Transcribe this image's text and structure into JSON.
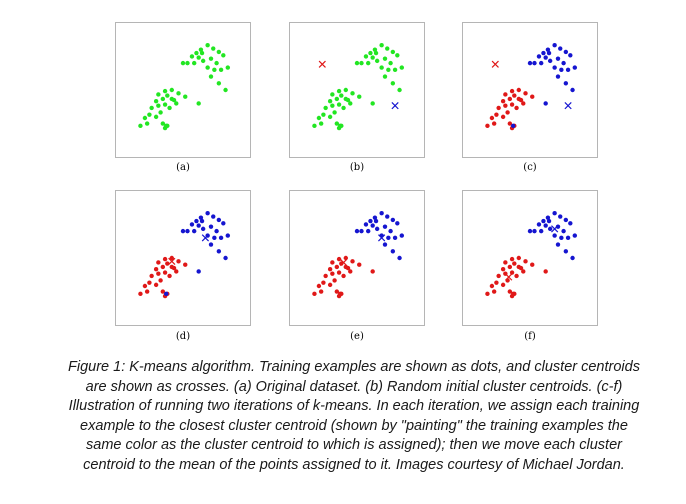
{
  "figure": {
    "caption": "Figure 1: K-means algorithm. Training examples are shown as dots, and cluster centroids are shown as crosses. (a) Original dataset. (b) Random initial cluster centroids. (c-f) Illustration of running two iterations of k-means. In each iteration, we assign each training example to the closest cluster centroid (shown by \"painting\" the training examples the same color as the cluster centroid to which is assigned); then we move each cluster centroid to the mean of the points assigned to it. Images courtesy of Michael Jordan."
  },
  "colors": {
    "green": "#22e622",
    "red": "#e01818",
    "blue": "#1515d0",
    "frame": "#b5b5b5"
  },
  "chart_data": {
    "type": "scatter",
    "xlim": [
      0,
      1
    ],
    "ylim": [
      0,
      1
    ],
    "points": {
      "cluster_a": [
        [
          0.58,
          0.8
        ],
        [
          0.62,
          0.83
        ],
        [
          0.66,
          0.86
        ],
        [
          0.72,
          0.9
        ],
        [
          0.77,
          0.87
        ],
        [
          0.82,
          0.84
        ],
        [
          0.86,
          0.81
        ],
        [
          0.6,
          0.74
        ],
        [
          0.68,
          0.76
        ],
        [
          0.75,
          0.78
        ],
        [
          0.8,
          0.74
        ],
        [
          0.72,
          0.7
        ],
        [
          0.78,
          0.68
        ],
        [
          0.84,
          0.68
        ],
        [
          0.9,
          0.7
        ],
        [
          0.75,
          0.62
        ],
        [
          0.82,
          0.56
        ],
        [
          0.88,
          0.5
        ],
        [
          0.5,
          0.74
        ],
        [
          0.54,
          0.74
        ],
        [
          0.64,
          0.79
        ],
        [
          0.67,
          0.83
        ]
      ],
      "cluster_b": [
        [
          0.28,
          0.46
        ],
        [
          0.34,
          0.49
        ],
        [
          0.4,
          0.5
        ],
        [
          0.46,
          0.47
        ],
        [
          0.52,
          0.44
        ],
        [
          0.26,
          0.4
        ],
        [
          0.32,
          0.42
        ],
        [
          0.36,
          0.45
        ],
        [
          0.42,
          0.41
        ],
        [
          0.44,
          0.38
        ],
        [
          0.22,
          0.34
        ],
        [
          0.28,
          0.36
        ],
        [
          0.34,
          0.37
        ],
        [
          0.38,
          0.34
        ],
        [
          0.16,
          0.25
        ],
        [
          0.2,
          0.28
        ],
        [
          0.26,
          0.26
        ],
        [
          0.3,
          0.3
        ],
        [
          0.12,
          0.18
        ],
        [
          0.18,
          0.2
        ],
        [
          0.32,
          0.2
        ],
        [
          0.34,
          0.16
        ],
        [
          0.36,
          0.18
        ],
        [
          0.4,
          0.42
        ]
      ],
      "blue_in_b_near_red": [
        [
          0.64,
          0.38
        ],
        [
          0.35,
          0.18
        ]
      ]
    },
    "panels": [
      {
        "label": "(a)",
        "colorA": "green",
        "colorB": "green",
        "colorBExtra": "green",
        "centroids": []
      },
      {
        "label": "(b)",
        "colorA": "green",
        "colorB": "green",
        "colorBExtra": "green",
        "centroids": [
          {
            "x": 0.19,
            "y": 0.73,
            "color": "red"
          },
          {
            "x": 0.84,
            "y": 0.36,
            "color": "blue"
          }
        ]
      },
      {
        "label": "(c)",
        "colorA": "blue",
        "colorB": "red",
        "colorBExtra": "blue",
        "centroids": [
          {
            "x": 0.19,
            "y": 0.73,
            "color": "red"
          },
          {
            "x": 0.84,
            "y": 0.36,
            "color": "blue"
          }
        ]
      },
      {
        "label": "(d)",
        "colorA": "blue",
        "colorB": "red",
        "colorBExtra": "blue",
        "centroids": [
          {
            "x": 0.4,
            "y": 0.47,
            "color": "red"
          },
          {
            "x": 0.7,
            "y": 0.68,
            "color": "blue"
          }
        ]
      },
      {
        "label": "(e)",
        "colorA": "blue",
        "colorB": "red",
        "colorBExtra": "red",
        "centroids": [
          {
            "x": 0.38,
            "y": 0.46,
            "color": "red"
          },
          {
            "x": 0.72,
            "y": 0.68,
            "color": "blue"
          }
        ]
      },
      {
        "label": "(f)",
        "colorA": "blue",
        "colorB": "red",
        "colorBExtra": "red",
        "centroids": [
          {
            "x": 0.31,
            "y": 0.33,
            "color": "red"
          },
          {
            "x": 0.72,
            "y": 0.76,
            "color": "blue"
          }
        ]
      }
    ]
  }
}
